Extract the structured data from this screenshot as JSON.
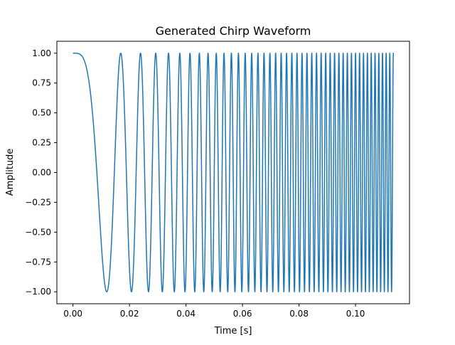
{
  "chart_data": {
    "type": "line",
    "title": "Generated Chirp Waveform",
    "xlabel": "Time [s]",
    "ylabel": "Amplitude",
    "xlim": [
      -0.0057,
      0.1191
    ],
    "ylim": [
      -1.1,
      1.1
    ],
    "x_ticks": [
      0.0,
      0.02,
      0.04,
      0.06,
      0.08,
      0.1
    ],
    "x_tick_labels": [
      "0.00",
      "0.02",
      "0.04",
      "0.06",
      "0.08",
      "0.10"
    ],
    "y_ticks": [
      -1.0,
      -0.75,
      -0.5,
      -0.25,
      0.0,
      0.25,
      0.5,
      0.75,
      1.0
    ],
    "y_tick_labels": [
      "−1.00",
      "−0.75",
      "−0.50",
      "−0.25",
      "0.00",
      "0.25",
      "0.50",
      "0.75",
      "1.00"
    ],
    "grid": false,
    "legend": false,
    "series": [
      {
        "function": "y = cos(2π·k·t²)",
        "chirp_rate_k": 3500,
        "t_start": 0.0,
        "t_end": 0.1134,
        "color": "#1f77b4"
      }
    ]
  }
}
